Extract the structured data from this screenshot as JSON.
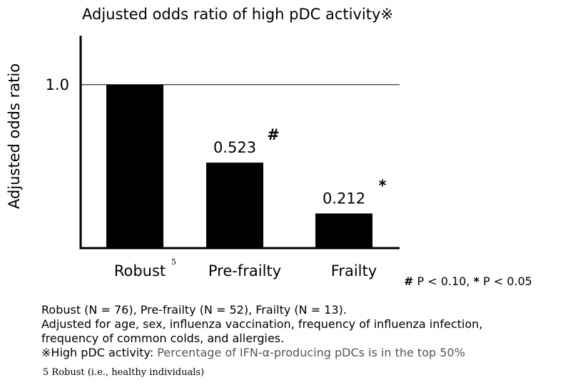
{
  "chart_data": {
    "type": "bar",
    "title": "Adjusted odds ratio of high pDC activity※",
    "ylabel": "Adjusted odds ratio",
    "xlabel": "",
    "categories": [
      "Robust",
      "Pre-frailty",
      "Frailty"
    ],
    "category_superscripts": [
      "5",
      "",
      ""
    ],
    "values": [
      1.0,
      0.523,
      0.212
    ],
    "data_labels": [
      "",
      "0.523",
      "0.212"
    ],
    "significance_marks": [
      "",
      "#",
      "*"
    ],
    "y_ticks": [
      "1.0"
    ],
    "ylim": [
      0,
      1.3
    ],
    "reference_line": 1.0,
    "bar_color": "#000000",
    "grid": false
  },
  "significance_note": {
    "hash": "#",
    "hash_text": " P < 0.10, ",
    "star": "*",
    "star_text": " P < 0.05"
  },
  "notes": {
    "line1": "Robust (N = 76), Pre-frailty (N = 52), Frailty (N = 13).",
    "line2": "Adjusted for age, sex, influenza vaccination, frequency of influenza infection,",
    "line3": "frequency of common colds, and allergies.",
    "line4_a": "※High pDC activity: ",
    "line4_b": "Percentage of IFN-α-producing pDCs is in the top 50%"
  },
  "footnote": "5 Robust (i.e., healthy individuals)"
}
